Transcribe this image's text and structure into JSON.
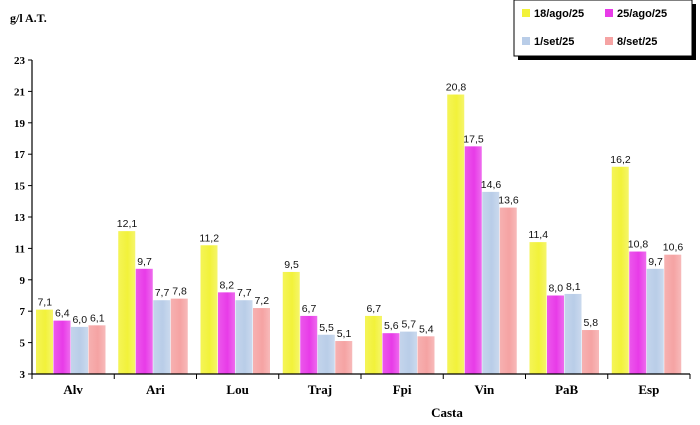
{
  "chart_data": {
    "type": "bar",
    "ylabel": "g/l A.T.",
    "xlabel": "Casta",
    "ylim": [
      3,
      23
    ],
    "yticks": [
      3,
      5,
      7,
      9,
      11,
      13,
      15,
      17,
      19,
      21,
      23
    ],
    "grid": false,
    "legend_position": "top-right",
    "categories": [
      "Alv",
      "Ari",
      "Lou",
      "Traj",
      "Fpi",
      "Vin",
      "PaB",
      "Esp"
    ],
    "series": [
      {
        "name": "18/ago/25",
        "color": "#f2f23a",
        "values": [
          7.1,
          12.1,
          11.2,
          9.5,
          6.7,
          20.8,
          11.4,
          16.2
        ],
        "labels": [
          "7,1",
          "12,1",
          "11,2",
          "9,5",
          "6,7",
          "20,8",
          "11,4",
          "16,2"
        ]
      },
      {
        "name": "25/ago/25",
        "color": "#e83be8",
        "values": [
          6.4,
          9.7,
          8.2,
          6.7,
          5.6,
          17.5,
          8.0,
          10.8
        ],
        "labels": [
          "6,4",
          "9,7",
          "8,2",
          "6,7",
          "5,6",
          "17,5",
          "8,0",
          "10,8"
        ]
      },
      {
        "name": "1/set/25",
        "color": "#b9cde8",
        "values": [
          6.0,
          7.7,
          7.7,
          5.5,
          5.7,
          14.6,
          8.1,
          9.7
        ],
        "labels": [
          "6,0",
          "7,7",
          "7,7",
          "5,5",
          "5,7",
          "14,6",
          "8,1",
          "9,7"
        ]
      },
      {
        "name": "8/set/25",
        "color": "#f5a3a3",
        "values": [
          6.1,
          7.8,
          7.2,
          5.1,
          5.4,
          13.6,
          5.8,
          10.6
        ],
        "labels": [
          "6,1",
          "7,8",
          "7,2",
          "5,1",
          "5,4",
          "13,6",
          "5,8",
          "10,6"
        ]
      }
    ]
  }
}
